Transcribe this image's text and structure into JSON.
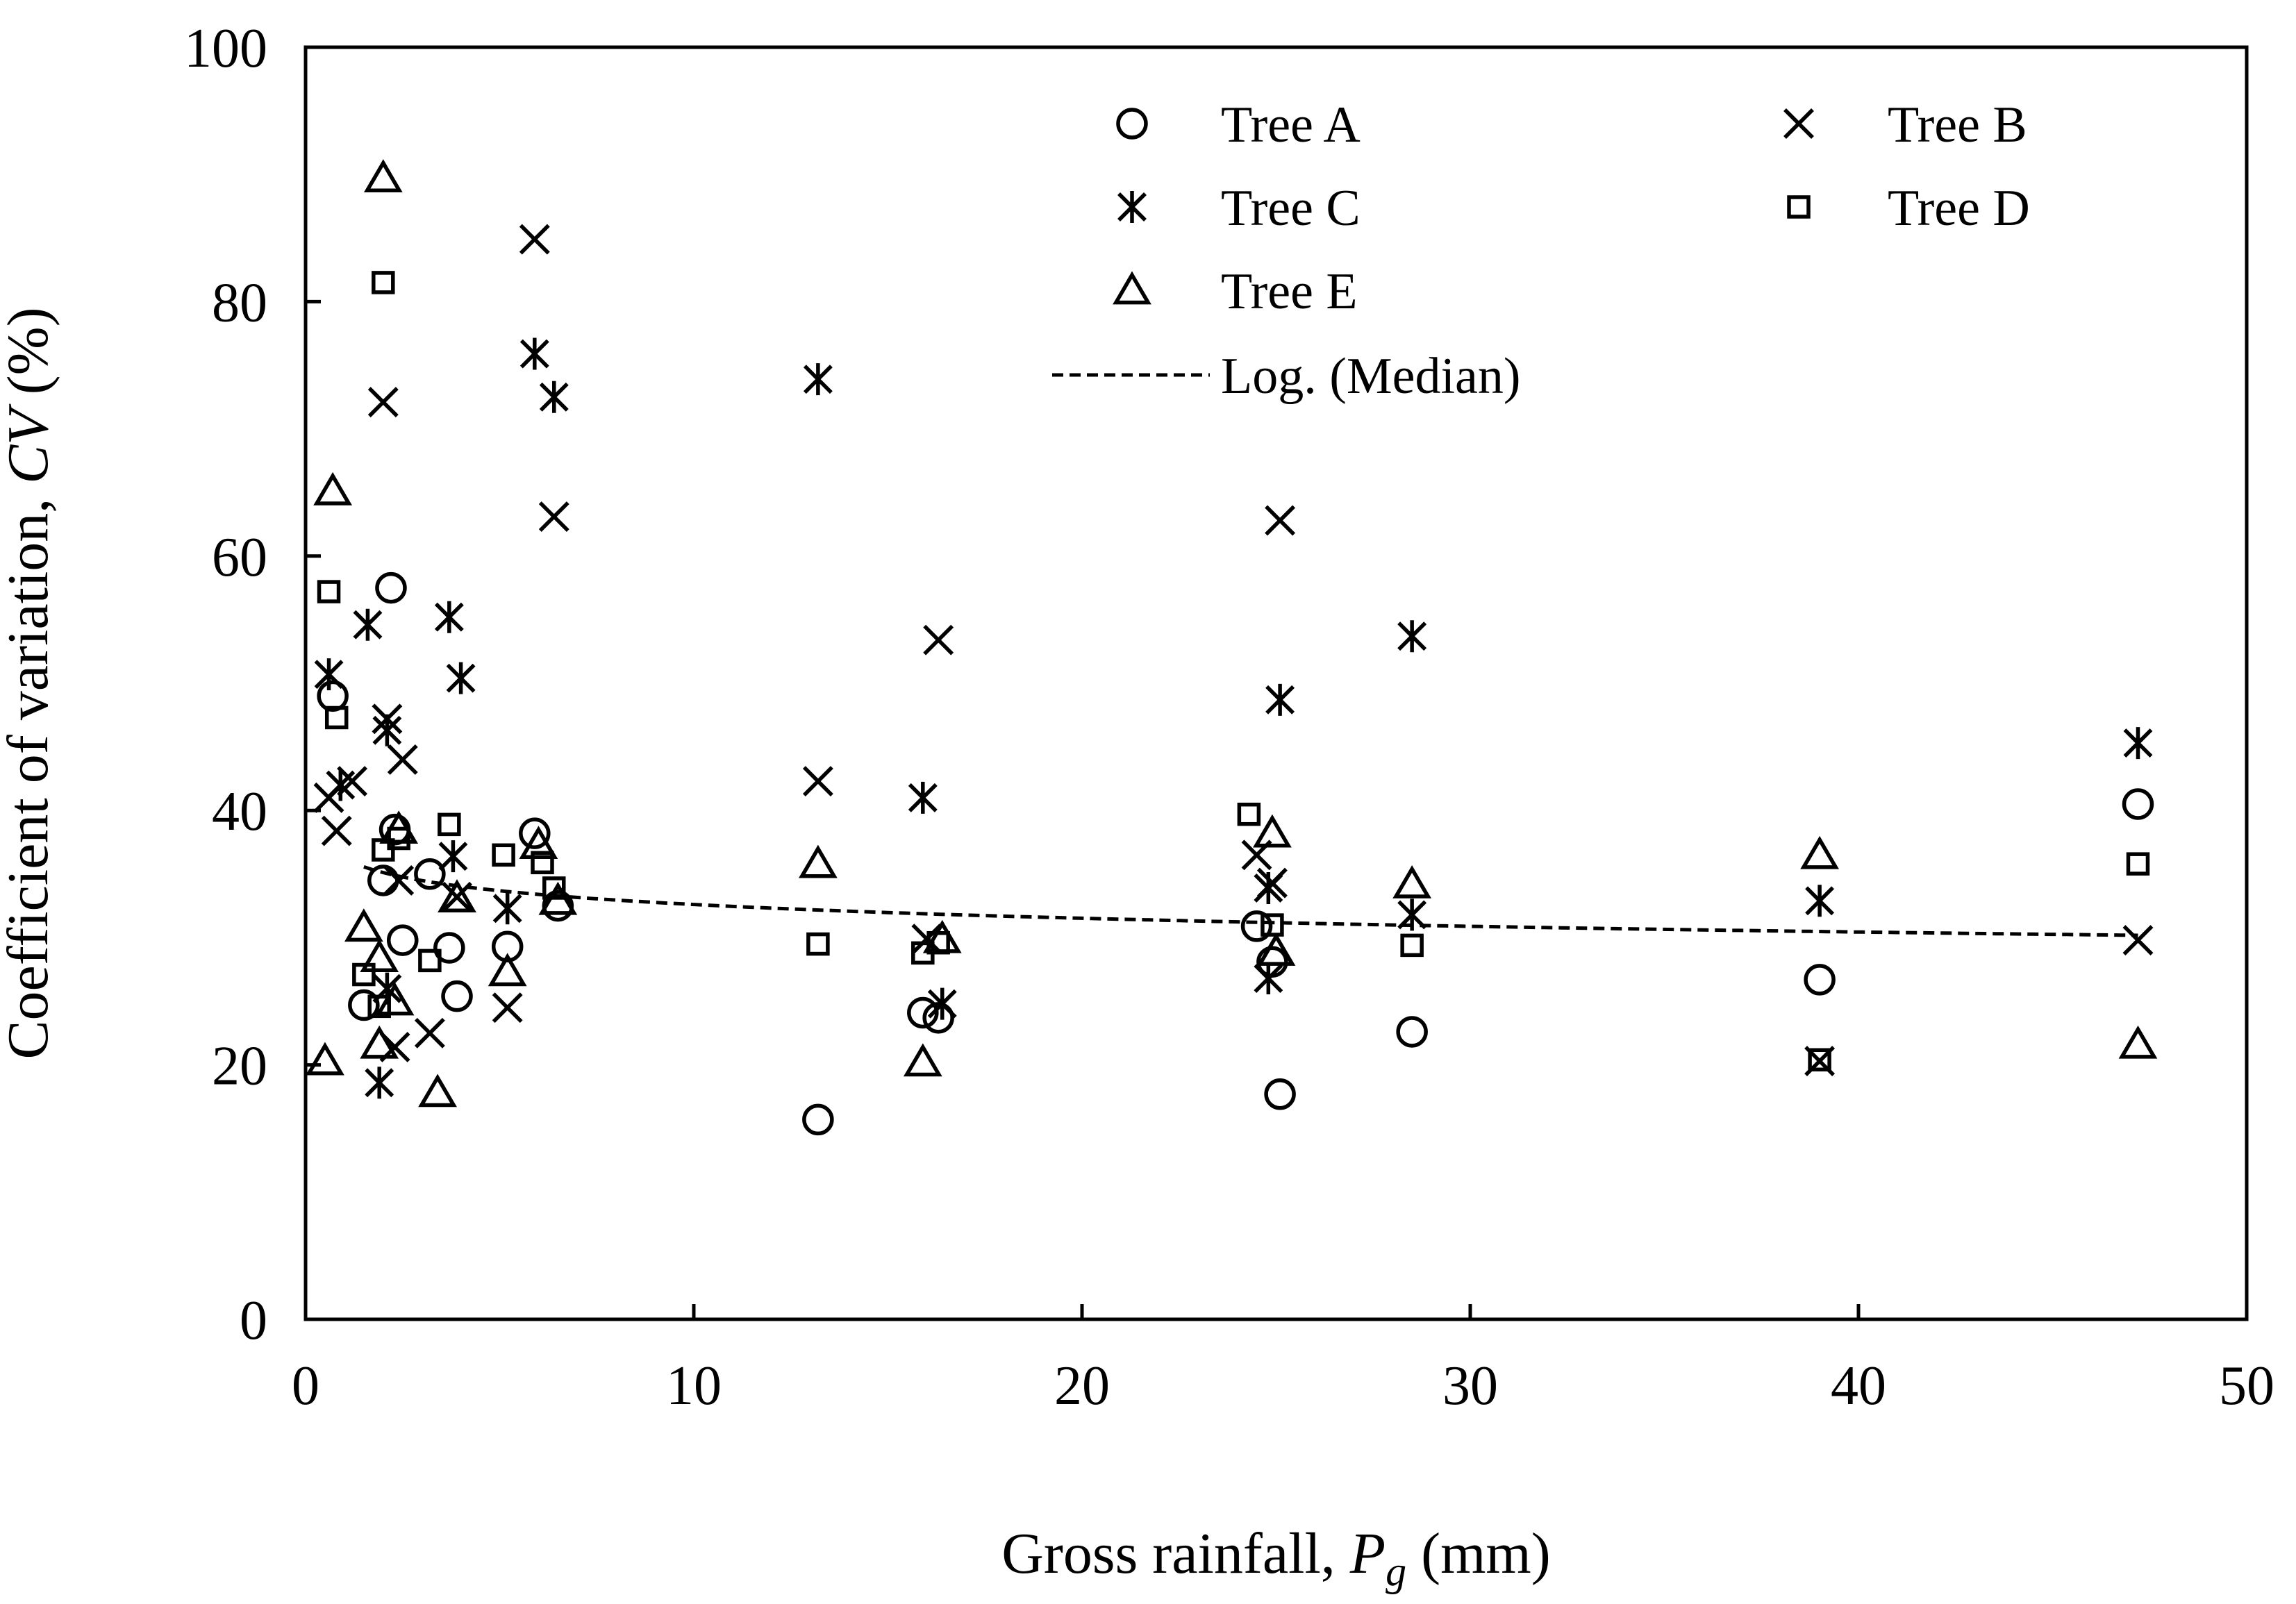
{
  "chart_data": {
    "type": "scatter",
    "title": "",
    "xlabel": {
      "prefix": "Gross rainfall, ",
      "symbol": "P",
      "subscript": "g",
      "suffix": " (mm)"
    },
    "ylabel": {
      "prefix": "Coefficient of variation, ",
      "symbol": "CV",
      "suffix": " (%)"
    },
    "xlim": [
      0,
      50
    ],
    "ylim": [
      0,
      100
    ],
    "x_ticks": [
      {
        "value": 0,
        "label": "0"
      },
      {
        "value": 10,
        "label": "10"
      },
      {
        "value": 20,
        "label": "20"
      },
      {
        "value": 30,
        "label": "30"
      },
      {
        "value": 40,
        "label": "40"
      },
      {
        "value": 50,
        "label": "50"
      }
    ],
    "y_ticks": [
      {
        "value": 0,
        "label": "0"
      },
      {
        "value": 20,
        "label": "20"
      },
      {
        "value": 40,
        "label": "40"
      },
      {
        "value": 60,
        "label": "60"
      },
      {
        "value": 80,
        "label": "80"
      },
      {
        "value": 100,
        "label": "100"
      }
    ],
    "grid": false,
    "legend_position": "top",
    "series": [
      {
        "name": "Tree A",
        "marker": "circle",
        "points": [
          [
            0.7,
            49.0
          ],
          [
            2.0,
            34.5
          ],
          [
            2.2,
            57.5
          ],
          [
            2.3,
            38.5
          ],
          [
            2.5,
            29.8
          ],
          [
            1.5,
            24.7
          ],
          [
            3.2,
            35.0
          ],
          [
            3.7,
            29.2
          ],
          [
            3.9,
            25.4
          ],
          [
            5.2,
            29.3
          ],
          [
            5.9,
            38.2
          ],
          [
            6.5,
            32.5
          ],
          [
            13.2,
            15.7
          ],
          [
            15.9,
            24.1
          ],
          [
            16.3,
            23.7
          ],
          [
            24.5,
            30.9
          ],
          [
            24.9,
            28.1
          ],
          [
            25.1,
            17.7
          ],
          [
            28.5,
            22.6
          ],
          [
            39.0,
            26.7
          ],
          [
            47.2,
            40.5
          ]
        ]
      },
      {
        "name": "Tree B",
        "marker": "x",
        "points": [
          [
            0.6,
            41.0
          ],
          [
            0.8,
            38.4
          ],
          [
            1.2,
            42.3
          ],
          [
            2.0,
            72.1
          ],
          [
            2.1,
            47.2
          ],
          [
            2.3,
            21.4
          ],
          [
            2.5,
            44.0
          ],
          [
            2.4,
            34.5
          ],
          [
            3.2,
            22.5
          ],
          [
            3.9,
            33.2
          ],
          [
            5.2,
            24.5
          ],
          [
            5.9,
            84.9
          ],
          [
            6.4,
            63.1
          ],
          [
            13.2,
            42.3
          ],
          [
            16.3,
            53.4
          ],
          [
            16.0,
            29.9
          ],
          [
            24.5,
            36.5
          ],
          [
            25.1,
            62.8
          ],
          [
            24.9,
            34.3
          ],
          [
            39.0,
            20.3
          ],
          [
            47.2,
            29.8
          ]
        ]
      },
      {
        "name": "Tree C",
        "marker": "asterisk",
        "points": [
          [
            0.6,
            50.7
          ],
          [
            0.9,
            42.0
          ],
          [
            1.6,
            54.6
          ],
          [
            1.9,
            18.6
          ],
          [
            2.1,
            46.3
          ],
          [
            2.1,
            26.0
          ],
          [
            3.7,
            55.2
          ],
          [
            4.0,
            50.4
          ],
          [
            3.8,
            36.4
          ],
          [
            5.2,
            32.3
          ],
          [
            5.9,
            75.9
          ],
          [
            6.4,
            72.5
          ],
          [
            13.2,
            73.9
          ],
          [
            15.9,
            41.0
          ],
          [
            16.4,
            24.8
          ],
          [
            24.8,
            26.8
          ],
          [
            25.1,
            48.7
          ],
          [
            24.8,
            33.9
          ],
          [
            28.5,
            53.7
          ],
          [
            28.5,
            31.8
          ],
          [
            39.0,
            32.9
          ],
          [
            47.2,
            45.3
          ]
        ]
      },
      {
        "name": "Tree D",
        "marker": "square",
        "points": [
          [
            0.6,
            57.2
          ],
          [
            0.8,
            47.3
          ],
          [
            1.5,
            27.1
          ],
          [
            2.0,
            81.5
          ],
          [
            1.9,
            24.6
          ],
          [
            2.0,
            36.9
          ],
          [
            2.4,
            37.8
          ],
          [
            3.2,
            28.2
          ],
          [
            3.7,
            38.9
          ],
          [
            5.1,
            36.5
          ],
          [
            6.1,
            35.9
          ],
          [
            6.4,
            33.9
          ],
          [
            13.2,
            29.5
          ],
          [
            15.9,
            28.8
          ],
          [
            16.3,
            29.6
          ],
          [
            24.3,
            39.7
          ],
          [
            24.9,
            31.0
          ],
          [
            28.5,
            29.4
          ],
          [
            39.0,
            20.4
          ],
          [
            47.2,
            35.8
          ]
        ]
      },
      {
        "name": "Tree E",
        "marker": "triangle",
        "points": [
          [
            0.5,
            20.3
          ],
          [
            0.7,
            65.1
          ],
          [
            1.5,
            30.8
          ],
          [
            1.9,
            28.4
          ],
          [
            2.0,
            89.7
          ],
          [
            1.9,
            21.6
          ],
          [
            2.3,
            25.0
          ],
          [
            2.4,
            38.5
          ],
          [
            3.4,
            17.8
          ],
          [
            3.9,
            33.1
          ],
          [
            5.2,
            27.3
          ],
          [
            6.0,
            37.3
          ],
          [
            6.5,
            32.9
          ],
          [
            13.2,
            35.8
          ],
          [
            15.9,
            20.2
          ],
          [
            16.4,
            29.9
          ],
          [
            24.9,
            38.2
          ],
          [
            25.0,
            28.9
          ],
          [
            28.5,
            34.2
          ],
          [
            39.0,
            36.5
          ],
          [
            47.2,
            21.6
          ]
        ]
      }
    ],
    "trend": {
      "name": "Log. (Median)",
      "style": "dashed",
      "function": "log",
      "a": -1.56,
      "b": 36.2,
      "x_start": 1.5,
      "x_end": 47.2
    }
  }
}
